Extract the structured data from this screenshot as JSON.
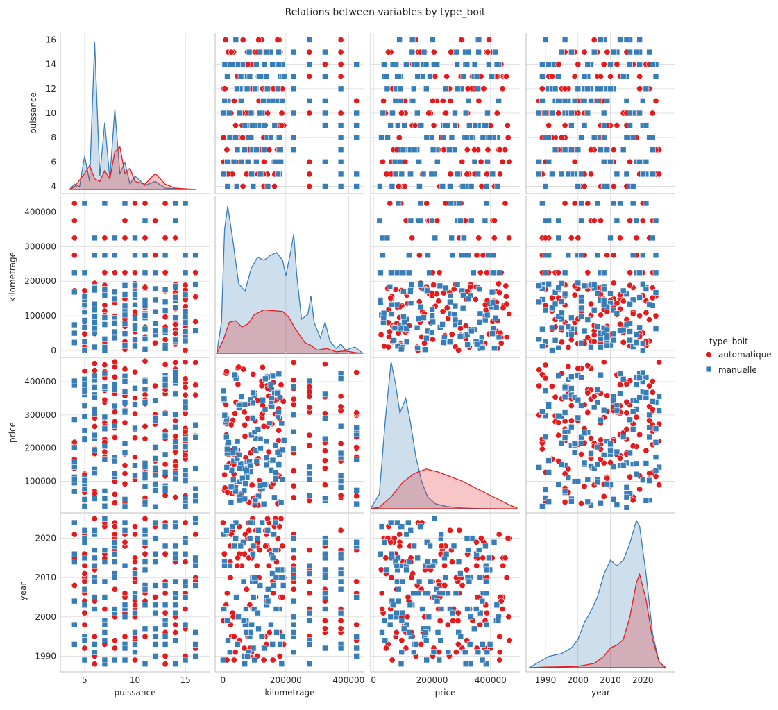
{
  "chart_data": {
    "type": "scatter",
    "subtype": "pairplot",
    "title": "Relations between variables by type_boit",
    "hue": "type_boit",
    "variables": [
      "puissance",
      "kilometrage",
      "price",
      "year"
    ],
    "axes": {
      "puissance": {
        "lim": [
          2.6,
          17.4
        ],
        "ticks": [
          5,
          10,
          15
        ],
        "tick_labels": [
          "5",
          "10",
          "15"
        ],
        "row_lim": [
          3.4,
          16.6
        ],
        "row_ticks": [
          4,
          6,
          8,
          10,
          12,
          14,
          16
        ],
        "row_tick_labels": [
          "4",
          "6",
          "8",
          "10",
          "12",
          "14",
          "16"
        ]
      },
      "kilometrage": {
        "lim": [
          -25000,
          450000
        ],
        "ticks": [
          0,
          200000,
          400000
        ],
        "tick_labels": [
          "0",
          "200000",
          "400000"
        ],
        "row_lim": [
          -20000,
          445000
        ],
        "row_ticks": [
          0,
          100000,
          200000,
          300000,
          400000
        ],
        "row_tick_labels": [
          "0",
          "100000",
          "200000",
          "300000",
          "400000"
        ]
      },
      "price": {
        "lim": [
          -10000,
          500000
        ],
        "ticks": [
          0,
          200000,
          400000
        ],
        "tick_labels": [
          "0",
          "200000",
          "400000"
        ],
        "row_lim": [
          5000,
          490000
        ],
        "row_ticks": [
          100000,
          200000,
          300000,
          400000
        ],
        "row_tick_labels": [
          "100000",
          "200000",
          "300000",
          "400000"
        ]
      },
      "year": {
        "lim": [
          1984,
          2030
        ],
        "ticks": [
          1990,
          2000,
          2010,
          2020
        ],
        "tick_labels": [
          "1990",
          "2000",
          "2010",
          "2020"
        ],
        "row_lim": [
          1986,
          2027
        ],
        "row_ticks": [
          1990,
          2000,
          2010,
          2020
        ],
        "row_tick_labels": [
          "1990",
          "2000",
          "2010",
          "2020"
        ]
      }
    },
    "series": [
      {
        "name": "automatique",
        "color": "#e41a1c",
        "marker": "circle",
        "ranges": {
          "puissance": [
            4,
            16
          ],
          "kilometrage": [
            0,
            425000
          ],
          "price": [
            25000,
            465000
          ],
          "year": [
            1988,
            2025
          ]
        },
        "kde": {
          "puissance": [
            [
              3.5,
              0.0
            ],
            [
              4,
              0.002
            ],
            [
              5,
              0.012
            ],
            [
              5.5,
              0.018
            ],
            [
              6,
              0.008
            ],
            [
              6.5,
              0.006
            ],
            [
              7,
              0.014
            ],
            [
              7.5,
              0.008
            ],
            [
              8,
              0.028
            ],
            [
              8.5,
              0.032
            ],
            [
              9,
              0.012
            ],
            [
              9.5,
              0.016
            ],
            [
              10,
              0.006
            ],
            [
              11,
              0.004
            ],
            [
              12,
              0.012
            ],
            [
              13,
              0.004
            ],
            [
              14,
              0.001
            ],
            [
              16,
              0.0
            ]
          ],
          "kilometrage": [
            [
              -20000,
              0
            ],
            [
              0,
              0.8
            ],
            [
              20000,
              2.0
            ],
            [
              40000,
              2.1
            ],
            [
              60000,
              1.7
            ],
            [
              80000,
              1.9
            ],
            [
              100000,
              2.5
            ],
            [
              130000,
              2.8
            ],
            [
              160000,
              2.75
            ],
            [
              190000,
              2.7
            ],
            [
              210000,
              2.3
            ],
            [
              230000,
              1.6
            ],
            [
              260000,
              0.7
            ],
            [
              280000,
              0.5
            ],
            [
              300000,
              0.2
            ],
            [
              330000,
              0.3
            ],
            [
              360000,
              0.1
            ],
            [
              390000,
              0.15
            ],
            [
              420000,
              0.05
            ],
            [
              440000,
              0
            ]
          ],
          "price": [
            [
              -10000,
              0
            ],
            [
              20000,
              0.1
            ],
            [
              60000,
              0.8
            ],
            [
              100000,
              1.8
            ],
            [
              140000,
              2.4
            ],
            [
              180000,
              2.7
            ],
            [
              220000,
              2.5
            ],
            [
              260000,
              2.2
            ],
            [
              300000,
              1.9
            ],
            [
              340000,
              1.5
            ],
            [
              380000,
              1.1
            ],
            [
              420000,
              0.7
            ],
            [
              460000,
              0.3
            ],
            [
              490000,
              0.05
            ]
          ],
          "year": [
            [
              1985,
              0
            ],
            [
              1990,
              0.002
            ],
            [
              1995,
              0.003
            ],
            [
              2000,
              0.005
            ],
            [
              2005,
              0.015
            ],
            [
              2008,
              0.04
            ],
            [
              2010,
              0.07
            ],
            [
              2012,
              0.08
            ],
            [
              2014,
              0.1
            ],
            [
              2016,
              0.18
            ],
            [
              2018,
              0.3
            ],
            [
              2019,
              0.33
            ],
            [
              2021,
              0.24
            ],
            [
              2023,
              0.1
            ],
            [
              2025,
              0.02
            ],
            [
              2027,
              0
            ]
          ]
        }
      },
      {
        "name": "manuelle",
        "color": "#377eb8",
        "marker": "square",
        "ranges": {
          "puissance": [
            4,
            16
          ],
          "kilometrage": [
            0,
            425000
          ],
          "price": [
            20000,
            430000
          ],
          "year": [
            1988,
            2025
          ]
        },
        "kde": {
          "puissance": [
            [
              3.5,
              0.0
            ],
            [
              4,
              0.004
            ],
            [
              4.5,
              0.002
            ],
            [
              5,
              0.025
            ],
            [
              5.5,
              0.006
            ],
            [
              6,
              0.11
            ],
            [
              6.5,
              0.01
            ],
            [
              7,
              0.05
            ],
            [
              7.5,
              0.008
            ],
            [
              8,
              0.06
            ],
            [
              8.5,
              0.012
            ],
            [
              9,
              0.02
            ],
            [
              9.5,
              0.004
            ],
            [
              10,
              0.01
            ],
            [
              11,
              0.003
            ],
            [
              12,
              0.006
            ],
            [
              13,
              0.001
            ],
            [
              16,
              0.0
            ]
          ],
          "kilometrage": [
            [
              -20000,
              0
            ],
            [
              -5000,
              2.0
            ],
            [
              5000,
              8.0
            ],
            [
              15000,
              9.5
            ],
            [
              30000,
              7.5
            ],
            [
              50000,
              4.5
            ],
            [
              70000,
              4.0
            ],
            [
              90000,
              5.5
            ],
            [
              110000,
              6.2
            ],
            [
              130000,
              6.0
            ],
            [
              150000,
              6.3
            ],
            [
              170000,
              6.5
            ],
            [
              190000,
              6.0
            ],
            [
              200000,
              5.0
            ],
            [
              215000,
              6.5
            ],
            [
              225000,
              7.7
            ],
            [
              235000,
              5.0
            ],
            [
              250000,
              2.2
            ],
            [
              270000,
              2.5
            ],
            [
              280000,
              3.7
            ],
            [
              290000,
              2.0
            ],
            [
              310000,
              1.0
            ],
            [
              325000,
              2.0
            ],
            [
              340000,
              0.8
            ],
            [
              360000,
              0.3
            ],
            [
              375000,
              0.6
            ],
            [
              390000,
              0.2
            ],
            [
              420000,
              0.4
            ],
            [
              445000,
              0
            ]
          ],
          "price": [
            [
              -10000,
              0
            ],
            [
              20000,
              1.0
            ],
            [
              40000,
              6.0
            ],
            [
              60000,
              10.0
            ],
            [
              75000,
              8.5
            ],
            [
              90000,
              6.5
            ],
            [
              110000,
              7.5
            ],
            [
              125000,
              6.0
            ],
            [
              145000,
              3.5
            ],
            [
              165000,
              1.8
            ],
            [
              185000,
              0.8
            ],
            [
              210000,
              0.35
            ],
            [
              250000,
              0.15
            ],
            [
              300000,
              0.05
            ],
            [
              350000,
              0.02
            ],
            [
              420000,
              0
            ]
          ],
          "year": [
            [
              1985,
              0
            ],
            [
              1988,
              0.02
            ],
            [
              1991,
              0.04
            ],
            [
              1995,
              0.05
            ],
            [
              1998,
              0.07
            ],
            [
              2000,
              0.1
            ],
            [
              2002,
              0.16
            ],
            [
              2004,
              0.2
            ],
            [
              2006,
              0.25
            ],
            [
              2008,
              0.33
            ],
            [
              2010,
              0.38
            ],
            [
              2012,
              0.36
            ],
            [
              2014,
              0.38
            ],
            [
              2016,
              0.44
            ],
            [
              2018,
              0.52
            ],
            [
              2019,
              0.5
            ],
            [
              2021,
              0.33
            ],
            [
              2023,
              0.12
            ],
            [
              2025,
              0.02
            ],
            [
              2027,
              0
            ]
          ]
        }
      }
    ],
    "legend": {
      "title": "type_boit",
      "placement": "right",
      "entries": [
        "automatique",
        "manuelle"
      ]
    },
    "grid": true
  }
}
